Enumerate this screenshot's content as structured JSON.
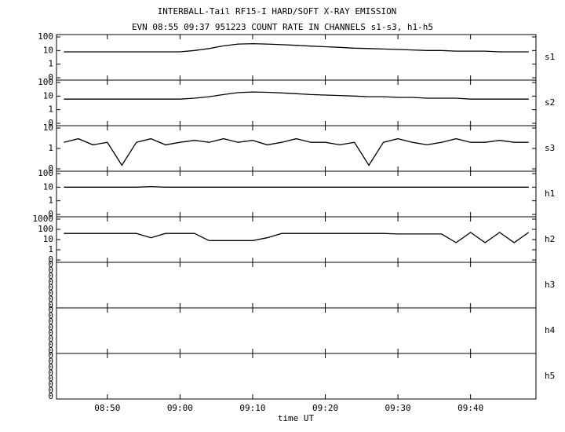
{
  "chart_data": {
    "type": "line",
    "title": "INTERBALL-Tail RF15-I HARD/SOFT X-RAY EMISSION",
    "subtitle": "EVN 08:55 09:37 951223  COUNT RATE IN CHANNELS s1-s3, h1-h5",
    "xlabel": "time UT",
    "xlim": [
      "08:43",
      "09:49"
    ],
    "xticks": [
      "08:50",
      "09:00",
      "09:10",
      "09:20",
      "09:30",
      "09:40"
    ],
    "x": [
      "08:44",
      "08:46",
      "08:48",
      "08:50",
      "08:52",
      "08:54",
      "08:56",
      "08:58",
      "09:00",
      "09:02",
      "09:04",
      "09:06",
      "09:08",
      "09:10",
      "09:12",
      "09:14",
      "09:16",
      "09:18",
      "09:20",
      "09:22",
      "09:24",
      "09:26",
      "09:28",
      "09:30",
      "09:32",
      "09:34",
      "09:36",
      "09:38",
      "09:40",
      "09:42",
      "09:44",
      "09:46",
      "09:48"
    ],
    "panels": [
      {
        "name": "s1",
        "scale": "log",
        "color": "#000000",
        "ylim": [
          0.1,
          100
        ],
        "yticks": [
          {
            "value": 0.1,
            "label": "0"
          },
          1,
          10,
          100
        ],
        "values": [
          8,
          8,
          8,
          8,
          8,
          8,
          8,
          8,
          8,
          10,
          14,
          22,
          30,
          32,
          30,
          27,
          24,
          21,
          19,
          17,
          15,
          14,
          13,
          12,
          11,
          10,
          10,
          9,
          9,
          9,
          8,
          8,
          8
        ]
      },
      {
        "name": "s2",
        "scale": "log",
        "color": "#000000",
        "ylim": [
          0.1,
          100
        ],
        "yticks": [
          {
            "value": 0.1,
            "label": "0"
          },
          1,
          10,
          100
        ],
        "values": [
          6,
          6,
          6,
          6,
          6,
          6,
          6,
          6,
          6,
          7,
          9,
          13,
          18,
          20,
          19,
          17,
          15,
          13,
          12,
          11,
          10,
          9,
          9,
          8,
          8,
          7,
          7,
          7,
          6,
          6,
          6,
          6,
          6
        ]
      },
      {
        "name": "s3",
        "scale": "log",
        "color": "#000000",
        "ylim": [
          0.1,
          10
        ],
        "yticks": [
          {
            "value": 0.1,
            "label": "0"
          },
          1,
          10
        ],
        "values": [
          2,
          3,
          1.5,
          2,
          0.15,
          2,
          3,
          1.5,
          2,
          2.5,
          2,
          3,
          2,
          2.5,
          1.5,
          2,
          3,
          2,
          2,
          1.5,
          2,
          0.15,
          2,
          3,
          2,
          1.5,
          2,
          3,
          2,
          2,
          2.5,
          2,
          2
        ]
      },
      {
        "name": "h1",
        "scale": "log",
        "color": "#000000",
        "ylim": [
          0.1,
          100
        ],
        "yticks": [
          {
            "value": 0.1,
            "label": "0"
          },
          1,
          10,
          100
        ],
        "values": [
          10,
          10,
          10,
          10,
          10,
          10,
          11,
          10,
          10,
          10,
          10,
          10,
          10,
          10,
          10,
          10,
          10,
          10,
          10,
          10,
          10,
          10,
          10,
          10,
          10,
          10,
          10,
          10,
          10,
          10,
          10,
          10,
          10
        ]
      },
      {
        "name": "h2",
        "scale": "log",
        "color": "#000000",
        "ylim": [
          0.1,
          1000
        ],
        "yticks": [
          {
            "value": 0.1,
            "label": "0"
          },
          1,
          10,
          100,
          1000
        ],
        "values": [
          40,
          40,
          40,
          40,
          40,
          40,
          15,
          40,
          40,
          40,
          8,
          8,
          8,
          8,
          15,
          40,
          40,
          40,
          40,
          40,
          40,
          40,
          40,
          35,
          35,
          35,
          35,
          5,
          50,
          5,
          50,
          5,
          50
        ]
      },
      {
        "name": "h3",
        "ytick_labels": [
          "0",
          "0",
          "0",
          "0",
          "0",
          "0",
          "0",
          "0"
        ]
      },
      {
        "name": "h4",
        "ytick_labels": [
          "0",
          "0",
          "0",
          "0",
          "0",
          "0",
          "0",
          "0"
        ]
      },
      {
        "name": "h5",
        "ytick_labels": [
          "0",
          "0",
          "0",
          "0",
          "0",
          "0",
          "0",
          "0"
        ]
      }
    ]
  }
}
